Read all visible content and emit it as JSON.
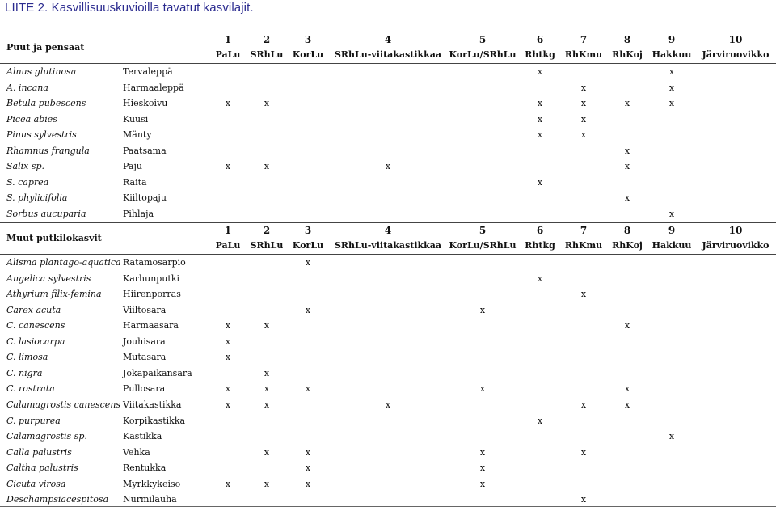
{
  "title": "LIITE 2. Kasvillisuuskuvioilla tavatut kasvilajit.",
  "columns": [
    {
      "num": "1",
      "abbr": "PaLu"
    },
    {
      "num": "2",
      "abbr": "SRhLu"
    },
    {
      "num": "3",
      "abbr": "KorLu"
    },
    {
      "num": "4",
      "abbr": "SRhLu-viitakastikkaa"
    },
    {
      "num": "5",
      "abbr": "KorLu/SRhLu"
    },
    {
      "num": "6",
      "abbr": "Rhtkg"
    },
    {
      "num": "7",
      "abbr": "RhKmu"
    },
    {
      "num": "8",
      "abbr": "RhKoj"
    },
    {
      "num": "9",
      "abbr": "Hakkuu"
    },
    {
      "num": "10",
      "abbr": "Järviruovikko"
    }
  ],
  "sections": [
    {
      "heading": "Puut ja pensaat",
      "rows": [
        {
          "sci": "Alnus glutinosa",
          "fin": "Tervaleppä",
          "marks": [
            6,
            9
          ]
        },
        {
          "sci": "A. incana",
          "fin": "Harmaaleppä",
          "marks": [
            7,
            9
          ]
        },
        {
          "sci": "Betula pubescens",
          "fin": "Hieskoivu",
          "marks": [
            1,
            2,
            6,
            7,
            8,
            9
          ]
        },
        {
          "sci": "Picea abies",
          "fin": "Kuusi",
          "marks": [
            6,
            7
          ]
        },
        {
          "sci": "Pinus sylvestris",
          "fin": "Mänty",
          "marks": [
            6,
            7
          ]
        },
        {
          "sci": "Rhamnus frangula",
          "fin": "Paatsama",
          "marks": [
            8
          ]
        },
        {
          "sci": "Salix sp.",
          "fin": "Paju",
          "marks": [
            1,
            2,
            4,
            8
          ]
        },
        {
          "sci": "S. caprea",
          "fin": "Raita",
          "marks": [
            6
          ]
        },
        {
          "sci": "S. phylicifolia",
          "fin": "Kiiltopaju",
          "marks": [
            8
          ]
        },
        {
          "sci": "Sorbus aucuparia",
          "fin": "Pihlaja",
          "marks": [
            9
          ]
        }
      ]
    },
    {
      "heading": "Muut putkilokasvit",
      "rows": [
        {
          "sci": "Alisma plantago-aquatica",
          "fin": "Ratamosarpio",
          "marks": [
            3
          ]
        },
        {
          "sci": "Angelica sylvestris",
          "fin": "Karhunputki",
          "marks": [
            6
          ]
        },
        {
          "sci": "Athyrium filix-femina",
          "fin": "Hiirenporras",
          "marks": [
            7
          ]
        },
        {
          "sci": "Carex acuta",
          "fin": "Viiltosara",
          "marks": [
            3,
            5
          ]
        },
        {
          "sci": "C. canescens",
          "fin": "Harmaasara",
          "marks": [
            1,
            2,
            8
          ]
        },
        {
          "sci": "C. lasiocarpa",
          "fin": "Jouhisara",
          "marks": [
            1
          ]
        },
        {
          "sci": "C. limosa",
          "fin": "Mutasara",
          "marks": [
            1
          ]
        },
        {
          "sci": "C. nigra",
          "fin": "Jokapaikansara",
          "marks": [
            2
          ]
        },
        {
          "sci": "C. rostrata",
          "fin": "Pullosara",
          "marks": [
            1,
            2,
            3,
            5,
            8
          ]
        },
        {
          "sci": "Calamagrostis canescens",
          "fin": "Viitakastikka",
          "marks": [
            1,
            2,
            4,
            7,
            8
          ]
        },
        {
          "sci": "C. purpurea",
          "fin": "Korpikastikka",
          "marks": [
            6
          ]
        },
        {
          "sci": "Calamagrostis sp.",
          "fin": "Kastikka",
          "marks": [
            9
          ]
        },
        {
          "sci": "Calla palustris",
          "fin": "Vehka",
          "marks": [
            2,
            3,
            5,
            7
          ]
        },
        {
          "sci": "Caltha palustris",
          "fin": "Rentukka",
          "marks": [
            3,
            5
          ]
        },
        {
          "sci": "Cicuta virosa",
          "fin": "Myrkkykeiso",
          "marks": [
            1,
            2,
            3,
            5
          ]
        },
        {
          "sci": "Deschampsiacespitosa",
          "fin": "Nurmilauha",
          "marks": [
            7
          ]
        }
      ]
    }
  ],
  "mark_symbol": "x"
}
